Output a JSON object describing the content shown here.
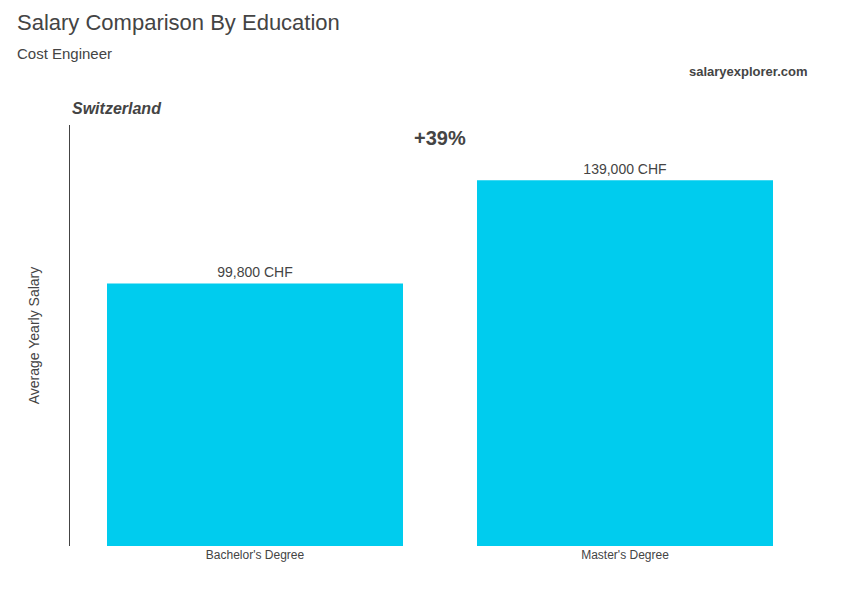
{
  "chart_data": {
    "type": "bar",
    "title": "Salary Comparison By Education",
    "subtitle": "Cost Engineer",
    "annotations": [
      "Switzerland",
      "salaryexplorer.com",
      "+39%"
    ],
    "y_label": "Average Yearly Salary",
    "categories": [
      "Bachelor's Degree",
      "Master's Degree"
    ],
    "values": [
      99800,
      139000
    ],
    "value_labels": [
      "99,800 CHF",
      "139,000 CHF"
    ],
    "data_labels": true,
    "color": "#00ccee",
    "ylim": [
      0,
      160000
    ],
    "grid": false,
    "tick_labels": "x"
  }
}
